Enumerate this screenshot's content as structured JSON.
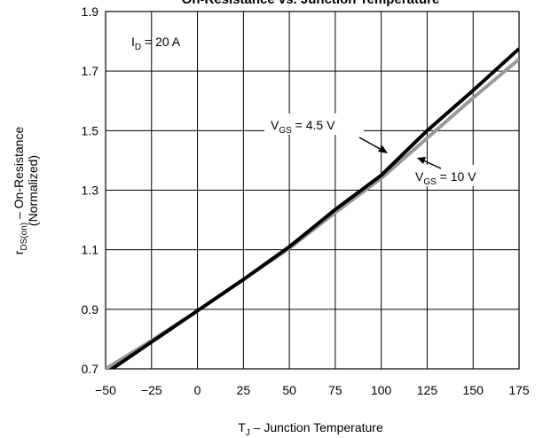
{
  "chart_data": {
    "type": "line",
    "title": "On-Resistance vs. Junction Temperature",
    "x_label": [
      "T",
      "J",
      " – Junction Temperature"
    ],
    "y_label": [
      [
        "r",
        "DS(on)",
        " – On-Resistance"
      ],
      "(Normalized)"
    ],
    "x": [
      -50,
      -25,
      0,
      25,
      50,
      75,
      100,
      125,
      150,
      175
    ],
    "series": [
      {
        "name": [
          "V",
          "GS",
          " = 10 V"
        ],
        "color": "#999999",
        "values": [
          0.7,
          0.795,
          0.895,
          1.0,
          1.105,
          1.225,
          1.34,
          1.475,
          1.61,
          1.74
        ]
      },
      {
        "name": [
          "V",
          "GS",
          " = 4.5 V"
        ],
        "color": "#000000",
        "values": [
          0.685,
          0.79,
          0.895,
          1.0,
          1.11,
          1.235,
          1.35,
          1.5,
          1.635,
          1.775
        ]
      }
    ],
    "annotations": [
      [
        "I",
        "D",
        " = 20 A"
      ]
    ],
    "xlim": [
      -50,
      175
    ],
    "xticks": [
      -50,
      -25,
      0,
      25,
      50,
      75,
      100,
      125,
      150,
      175
    ],
    "ylim": [
      0.7,
      1.9
    ],
    "yticks": [
      0.7,
      0.9,
      1.1,
      1.3,
      1.5,
      1.7,
      1.9
    ],
    "grid": true
  }
}
